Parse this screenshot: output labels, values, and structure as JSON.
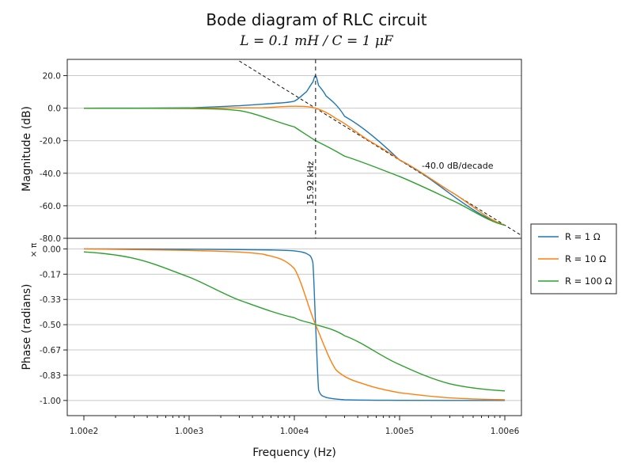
{
  "chart_data": {
    "type": "line",
    "title": "Bode diagram of RLC circuit",
    "subtitle": "L = 0.1 mH / C = 1 μF",
    "xlabel": "Frequency (Hz)",
    "x_scale": "log",
    "xlim": [
      100,
      1000000
    ],
    "x_ticks": [
      100,
      1000,
      10000,
      100000,
      1000000
    ],
    "x_tick_labels": [
      "1.00e2",
      "1.00e3",
      "1.00e4",
      "1.00e5",
      "1.00e6"
    ],
    "resonance_hz": 15915,
    "resonance_label": "15.92 kHz",
    "asymptote_label": "-40.0 dB/decade",
    "magnitude": {
      "ylabel": "Magnitude (dB)",
      "ylim": [
        -80,
        30
      ],
      "y_ticks": [
        20,
        0,
        -20,
        -40,
        -60,
        -80
      ],
      "y_tick_labels": [
        "20.0",
        "0.0",
        "-20.0",
        "-40.0",
        "-60.0",
        "-80.0"
      ]
    },
    "phase": {
      "ylabel": "Phase (radians)",
      "unit_label": "× π",
      "ylim": [
        -1.1,
        0.07
      ],
      "y_ticks": [
        0,
        -0.1667,
        -0.3333,
        -0.5,
        -0.6667,
        -0.8333,
        -1.0
      ],
      "y_tick_labels": [
        "0.00",
        "-0.17",
        "-0.33",
        "-0.50",
        "-0.67",
        "-0.83",
        "-1.00"
      ]
    },
    "grid": true,
    "legend_position": "right",
    "series": [
      {
        "name": "R = 1 Ω",
        "color": "#1f77b4",
        "x": [
          100,
          1000,
          3000,
          6000,
          10000,
          13000,
          15000,
          15915,
          17000,
          20000,
          30000,
          100000,
          1000000
        ],
        "magnitude_db": [
          0.0,
          0.2,
          1.5,
          2.8,
          4.3,
          10.0,
          16.0,
          20.0,
          14.0,
          7.5,
          -5.0,
          -31.9,
          -71.9
        ],
        "phase_pi": [
          0.0,
          -0.002,
          -0.005,
          -0.007,
          -0.013,
          -0.03,
          -0.09,
          -0.5,
          -0.93,
          -0.98,
          -0.995,
          -0.999,
          -1.0
        ]
      },
      {
        "name": "R = 10 Ω",
        "color": "#ff7f0e",
        "x": [
          100,
          1000,
          5000,
          10000,
          15915,
          25000,
          50000,
          100000,
          300000,
          1000000
        ],
        "magnitude_db": [
          0.0,
          0.0,
          0.3,
          1.2,
          0.0,
          -6.5,
          -19.5,
          -31.8,
          -51.0,
          -71.9
        ],
        "phase_pi": [
          0.0,
          -0.01,
          -0.034,
          -0.13,
          -0.5,
          -0.8,
          -0.9,
          -0.949,
          -0.983,
          -0.995
        ]
      },
      {
        "name": "R = 100 Ω",
        "color": "#2ca02c",
        "x": [
          100,
          300,
          1000,
          3000,
          10000,
          15915,
          30000,
          100000,
          300000,
          1000000
        ],
        "magnitude_db": [
          0.0,
          -0.05,
          -0.2,
          -1.5,
          -11.5,
          -20.0,
          -29.5,
          -42.0,
          -56.0,
          -72.0
        ],
        "phase_pi": [
          -0.02,
          -0.063,
          -0.186,
          -0.338,
          -0.454,
          -0.5,
          -0.573,
          -0.763,
          -0.89,
          -0.937
        ]
      }
    ]
  }
}
